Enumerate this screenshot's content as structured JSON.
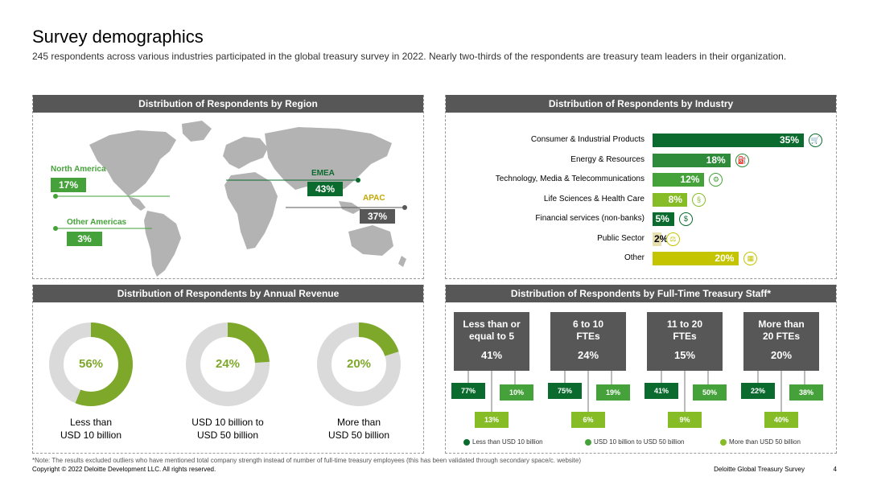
{
  "page": {
    "title": "Survey demographics",
    "subtitle": "245 respondents across various industries participated in the global treasury survey in 2022. Nearly two-thirds of the respondents are treasury team leaders in their organization."
  },
  "colors": {
    "dark_green": "#0b6b2e",
    "mid_green": "#2e8b3a",
    "green": "#45a23a",
    "light_green": "#86bc25",
    "lime": "#c4c400",
    "gray_header": "#575757",
    "map_gray": "#b3b3b3",
    "donut_track": "#dadada",
    "donut_fill": "#7da82a"
  },
  "chart_data": [
    {
      "type": "map",
      "title": "Distribution of Respondents by Region",
      "regions": [
        {
          "name": "North America",
          "value": "17%"
        },
        {
          "name": "EMEA",
          "value": "43%"
        },
        {
          "name": "APAC",
          "value": "37%"
        },
        {
          "name": "Other Americas",
          "value": "3%"
        }
      ]
    },
    {
      "type": "bar",
      "title": "Distribution of Respondents by Industry",
      "categories": [
        "Consumer & Industrial Products",
        "Energy & Resources",
        "Technology, Media & Telecommunications",
        "Life Sciences & Health Care",
        "Financial services (non-banks)",
        "Public Sector",
        "Other"
      ],
      "values": [
        35,
        18,
        12,
        8,
        5,
        2,
        20
      ],
      "labels": [
        "35%",
        "18%",
        "12%",
        "8%",
        "5%",
        "2%",
        "20%"
      ],
      "icons": [
        "cart-icon",
        "fuel-icon",
        "chip-icon",
        "dna-icon",
        "money-icon",
        "scale-icon",
        "grid-icon"
      ],
      "bar_colors": [
        "#0b6b2e",
        "#2e8b3a",
        "#45a23a",
        "#86bc25",
        "#0b6b2e",
        "#e8e0b0",
        "#c4c400"
      ]
    },
    {
      "type": "pie",
      "title": "Distribution of Respondents by Annual Revenue",
      "categories": [
        "Less than USD 10 billion",
        "USD 10 billion to USD 50 billion",
        "More than USD 50 billion"
      ],
      "captions": [
        [
          "Less than",
          "USD 10 billion"
        ],
        [
          "USD 10 billion to",
          "USD 50 billion"
        ],
        [
          "More than",
          "USD 50 billion"
        ]
      ],
      "values": [
        56,
        24,
        20
      ],
      "labels": [
        "56%",
        "24%",
        "20%"
      ]
    },
    {
      "type": "bar",
      "title": "Distribution of Respondents by Full-Time Treasury Staff*",
      "categories": [
        [
          "Less than or",
          "equal to 5"
        ],
        [
          "6 to 10",
          "FTEs"
        ],
        [
          "11 to 20",
          "FTEs"
        ],
        [
          "More than",
          "20 FTEs"
        ]
      ],
      "totals": [
        "41%",
        "24%",
        "15%",
        "20%"
      ],
      "series": [
        {
          "name": "Less than USD 10 billion",
          "values": [
            "77%",
            "75%",
            "41%",
            "22%"
          ]
        },
        {
          "name": "USD 10 billion to USD 50 billion",
          "values": [
            "10%",
            "19%",
            "50%",
            "38%"
          ]
        },
        {
          "name": "More than USD 50 billion",
          "values": [
            "13%",
            "6%",
            "9%",
            "40%"
          ]
        }
      ]
    }
  ],
  "footer": {
    "note": "*Note: The results excluded outliers who have mentioned total company strength instead of number of full-time treasury employees (this has been validated through secondary space/c. website)",
    "copyright": "Copyright © 2022 Deloitte Development LLC. All rights reserved.",
    "source": "Deloitte Global Treasury Survey",
    "page_number": "4"
  }
}
